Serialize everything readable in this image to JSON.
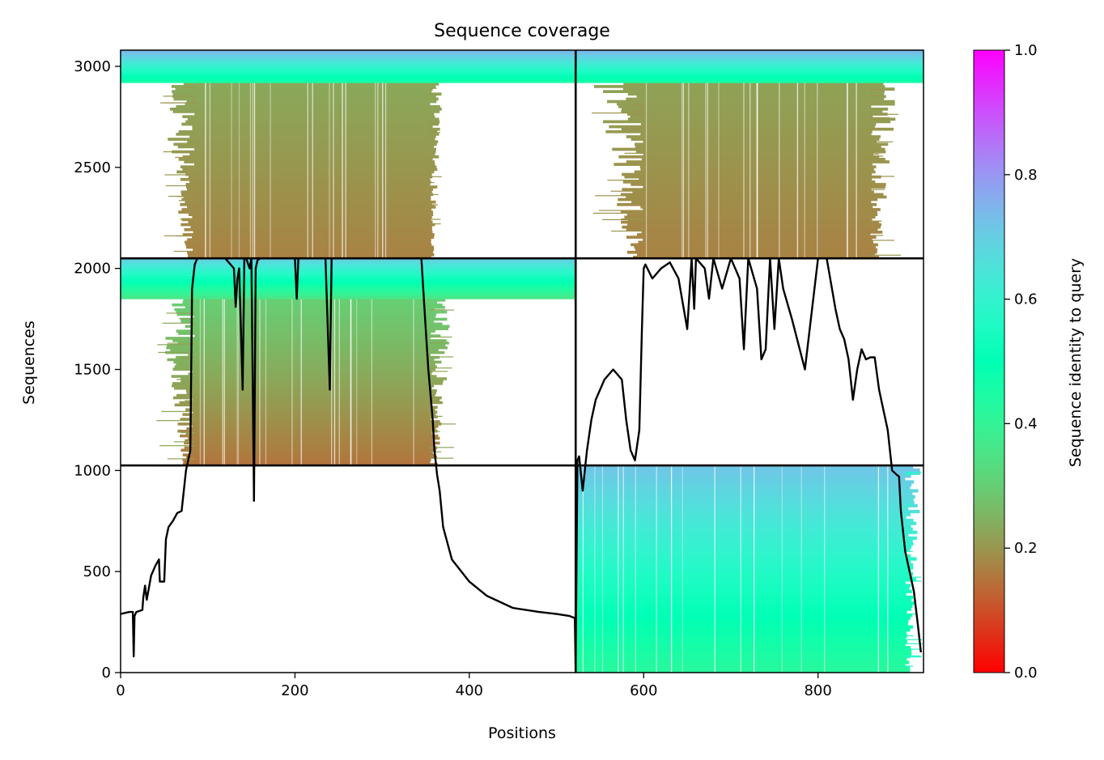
{
  "chart_data": {
    "type": "heatmap",
    "title": "Sequence coverage",
    "xlabel": "Positions",
    "ylabel": "Sequences",
    "xlim": [
      0,
      921
    ],
    "ylim": [
      0,
      3080
    ],
    "x_ticks": [
      0,
      200,
      400,
      600,
      800
    ],
    "y_ticks": [
      0,
      500,
      1000,
      1500,
      2000,
      2500,
      3000
    ],
    "x_tick_labels": [
      "0",
      "200",
      "400",
      "600",
      "800"
    ],
    "y_tick_labels": [
      "0",
      "500",
      "1000",
      "1500",
      "2000",
      "2500",
      "3000"
    ],
    "chain_boundary_x": 522,
    "msa_block_boundaries_y": [
      1025,
      2050
    ],
    "grid": false,
    "colorbar": {
      "label": "Sequence identity to query",
      "colormap": "rainbow_r",
      "range": [
        0.0,
        1.0
      ],
      "ticks": [
        0.0,
        0.2,
        0.4,
        0.6,
        0.8,
        1.0
      ],
      "tick_labels": [
        "0.0",
        "0.2",
        "0.4",
        "0.6",
        "0.8",
        "1.0"
      ]
    },
    "blocks": [
      {
        "name": "chainA-block3",
        "x": [
          0,
          522
        ],
        "y": [
          2050,
          3080
        ],
        "query_band": {
          "y": [
            2920,
            3080
          ],
          "identity_top": 0.75,
          "identity_bottom": 0.45,
          "x": [
            0,
            522
          ]
        },
        "core": {
          "x": [
            85,
            355
          ],
          "y": [
            2050,
            2920
          ],
          "identity_top": 0.23,
          "identity_bottom": 0.17
        },
        "fringe": {
          "x": [
            45,
            370
          ]
        }
      },
      {
        "name": "chainB-block3",
        "x": [
          522,
          921
        ],
        "y": [
          2050,
          3080
        ],
        "query_band": {
          "y": [
            2920,
            3080
          ],
          "identity_top": 0.75,
          "identity_bottom": 0.45,
          "x": [
            522,
            921
          ]
        },
        "core": {
          "x": [
            600,
            860
          ],
          "y": [
            2050,
            2920
          ],
          "identity_top": 0.22,
          "identity_bottom": 0.17
        },
        "fringe": {
          "x": [
            540,
            895
          ]
        }
      },
      {
        "name": "chainA-block2",
        "x": [
          0,
          522
        ],
        "y": [
          1025,
          2050
        ],
        "query_band": {
          "y": [
            1850,
            2050
          ],
          "identity_top": 0.7,
          "identity_bottom": 0.35,
          "x": [
            0,
            522
          ]
        },
        "core": {
          "x": [
            85,
            355
          ],
          "y": [
            1025,
            1850
          ],
          "identity_top": 0.3,
          "identity_bottom": 0.15
        },
        "fringe": {
          "x": [
            40,
            385
          ]
        }
      },
      {
        "name": "chainB-block1",
        "x": [
          522,
          921
        ],
        "y": [
          0,
          1025
        ],
        "query_band": null,
        "core": {
          "x": [
            522,
            900
          ],
          "y": [
            0,
            1025
          ],
          "identity_top": 0.72,
          "identity_bottom": 0.42
        },
        "fringe": {
          "x": [
            522,
            921
          ]
        }
      }
    ],
    "coverage_line": {
      "x": [
        0,
        10,
        14,
        15,
        16,
        18,
        25,
        26,
        28,
        30,
        35,
        40,
        44,
        45,
        50,
        52,
        55,
        60,
        65,
        70,
        75,
        78,
        80,
        82,
        85,
        88,
        95,
        120,
        130,
        132,
        134,
        136,
        140,
        142,
        144,
        148,
        150,
        153,
        155,
        157,
        160,
        170,
        190,
        200,
        202,
        204,
        210,
        220,
        235,
        240,
        242,
        245,
        255,
        280,
        300,
        330,
        345,
        350,
        353,
        355,
        358,
        360,
        363,
        366,
        370,
        380,
        400,
        420,
        450,
        480,
        500,
        515,
        521,
        522,
        524,
        526,
        530,
        535,
        540,
        545,
        555,
        565,
        575,
        580,
        585,
        590,
        595,
        598,
        600,
        602,
        610,
        620,
        630,
        640,
        650,
        655,
        658,
        660,
        670,
        675,
        680,
        690,
        700,
        710,
        715,
        720,
        730,
        735,
        740,
        745,
        750,
        755,
        760,
        770,
        785,
        800,
        810,
        820,
        825,
        830,
        835,
        840,
        845,
        850,
        855,
        860,
        865,
        870,
        880,
        885,
        890,
        893,
        895,
        900,
        905,
        910,
        915,
        918,
        920
      ],
      "y": [
        290,
        300,
        300,
        80,
        280,
        300,
        310,
        370,
        430,
        360,
        480,
        530,
        560,
        450,
        450,
        660,
        720,
        750,
        790,
        800,
        1000,
        1060,
        1100,
        1900,
        2020,
        2050,
        2050,
        2050,
        2000,
        1810,
        1950,
        2000,
        1400,
        2050,
        2050,
        2000,
        2050,
        850,
        2000,
        2040,
        2050,
        2050,
        2050,
        2050,
        1850,
        2050,
        2050,
        2050,
        2050,
        1400,
        2050,
        2050,
        2050,
        2050,
        2050,
        2050,
        2050,
        1700,
        1500,
        1400,
        1250,
        1100,
        980,
        900,
        720,
        560,
        450,
        380,
        320,
        300,
        290,
        280,
        270,
        20,
        1050,
        1070,
        900,
        1100,
        1250,
        1350,
        1450,
        1500,
        1450,
        1250,
        1100,
        1050,
        1200,
        1700,
        2000,
        2020,
        1950,
        2000,
        2030,
        1950,
        1700,
        2050,
        1800,
        2050,
        2000,
        1850,
        2050,
        1900,
        2050,
        1950,
        1600,
        2050,
        1900,
        1550,
        1600,
        2050,
        1700,
        2050,
        1900,
        1750,
        1500,
        2050,
        2050,
        1800,
        1700,
        1650,
        1550,
        1350,
        1500,
        1600,
        1550,
        1560,
        1560,
        1400,
        1200,
        1000,
        980,
        970,
        800,
        600,
        500,
        400,
        220,
        100
      ]
    }
  }
}
